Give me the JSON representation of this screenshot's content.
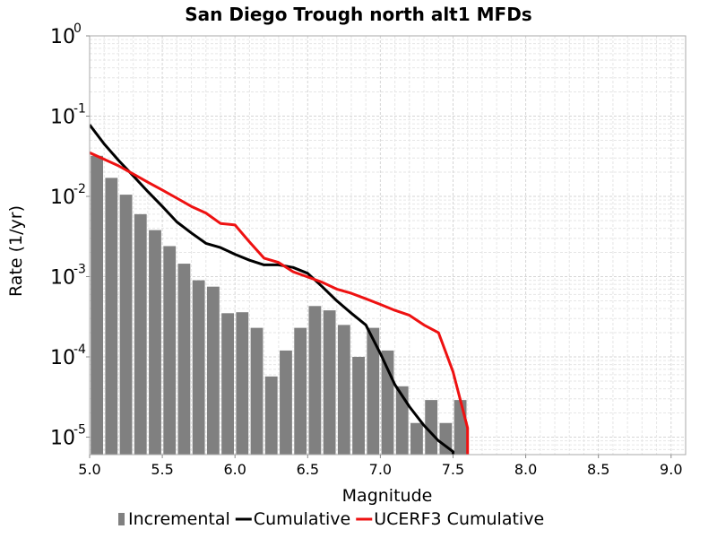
{
  "chart_data": {
    "type": "bar",
    "title": "San Diego Trough north alt1 MFDs",
    "xlabel": "Magnitude",
    "ylabel": "Rate (1/yr)",
    "xlim": [
      5.0,
      9.1
    ],
    "ylim": [
      5.5e-06,
      1
    ],
    "y_scale": "log",
    "grid": true,
    "legend_placement": "bottom",
    "x_ticks": [
      "5.0",
      "5.5",
      "6.0",
      "6.5",
      "7.0",
      "7.5",
      "8.0",
      "8.5",
      "9.0"
    ],
    "y_ticks": [
      {
        "base": "10",
        "exp": "0"
      },
      {
        "base": "10",
        "exp": "-1"
      },
      {
        "base": "10",
        "exp": "-2"
      },
      {
        "base": "10",
        "exp": "-3"
      },
      {
        "base": "10",
        "exp": "-4"
      },
      {
        "base": "10",
        "exp": "-5"
      }
    ],
    "series": [
      {
        "name": "Incremental",
        "type": "bar",
        "color": "#808080",
        "x": [
          5.05,
          5.15,
          5.25,
          5.35,
          5.45,
          5.55,
          5.65,
          5.75,
          5.85,
          5.95,
          6.05,
          6.15,
          6.25,
          6.35,
          6.45,
          6.55,
          6.65,
          6.75,
          6.85,
          6.95,
          7.05,
          7.15,
          7.25,
          7.35,
          7.45,
          7.55
        ],
        "values": [
          0.032,
          0.017,
          0.0105,
          0.006,
          0.0038,
          0.0024,
          0.00145,
          0.0009,
          0.00075,
          0.00035,
          0.00036,
          0.00023,
          5.7e-05,
          0.00012,
          0.00023,
          0.00043,
          0.00038,
          0.00025,
          0.0001,
          0.00023,
          0.00012,
          4.3e-05,
          1.5e-05,
          2.9e-05,
          1.5e-05,
          2.9e-05
        ]
      },
      {
        "name": "Cumulative",
        "type": "line",
        "color": "#000000",
        "x": [
          5.0,
          5.1,
          5.2,
          5.3,
          5.4,
          5.5,
          5.6,
          5.7,
          5.8,
          5.9,
          6.0,
          6.1,
          6.2,
          6.3,
          6.4,
          6.5,
          6.6,
          6.7,
          6.8,
          6.9,
          7.0,
          7.1,
          7.2,
          7.3,
          7.4,
          7.5,
          7.5
        ],
        "values": [
          0.078,
          0.045,
          0.028,
          0.018,
          0.0115,
          0.0075,
          0.0048,
          0.0035,
          0.0026,
          0.0023,
          0.0019,
          0.0016,
          0.0014,
          0.0014,
          0.0013,
          0.0011,
          0.00075,
          0.0005,
          0.00035,
          0.00025,
          0.00011,
          4.5e-05,
          2.4e-05,
          1.4e-05,
          9e-06,
          6.6e-06,
          4e-06
        ]
      },
      {
        "name": "UCERF3 Cumulative",
        "type": "line",
        "color": "#ee1111",
        "x": [
          5.0,
          5.1,
          5.2,
          5.3,
          5.4,
          5.5,
          5.6,
          5.7,
          5.8,
          5.9,
          6.0,
          6.1,
          6.2,
          6.3,
          6.4,
          6.5,
          6.6,
          6.7,
          6.8,
          6.9,
          7.0,
          7.1,
          7.2,
          7.3,
          7.4,
          7.5,
          7.6,
          7.6
        ],
        "values": [
          0.035,
          0.029,
          0.024,
          0.019,
          0.015,
          0.012,
          0.0095,
          0.0075,
          0.0062,
          0.0046,
          0.0044,
          0.0027,
          0.0017,
          0.0015,
          0.00115,
          0.00099,
          0.00085,
          0.0007,
          0.00062,
          0.00053,
          0.00045,
          0.00038,
          0.00033,
          0.00025,
          0.0002,
          6.5e-05,
          1.3e-05,
          4e-06
        ]
      }
    ]
  }
}
